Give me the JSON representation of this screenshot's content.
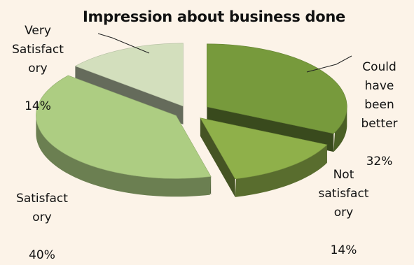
{
  "chart_data": {
    "type": "pie",
    "title": "Impression about business done",
    "slices": [
      {
        "label": "Could\nhave\nbeen\nbetter",
        "value_label": "32%",
        "value": 32,
        "color": "#779a3c"
      },
      {
        "label": "Not\nsatisfact\nory",
        "value_label": "14%",
        "value": 14,
        "color": "#8fb04a"
      },
      {
        "label": "Satisfact\nory",
        "value_label": "40%",
        "value": 40,
        "color": "#adcd82"
      },
      {
        "label": "Very\nSatisfact\nory",
        "value_label": "14%",
        "value": 14,
        "color": "#d3dfbd"
      }
    ],
    "legend": "none",
    "grid": false,
    "exploded": true,
    "style": "3d"
  }
}
